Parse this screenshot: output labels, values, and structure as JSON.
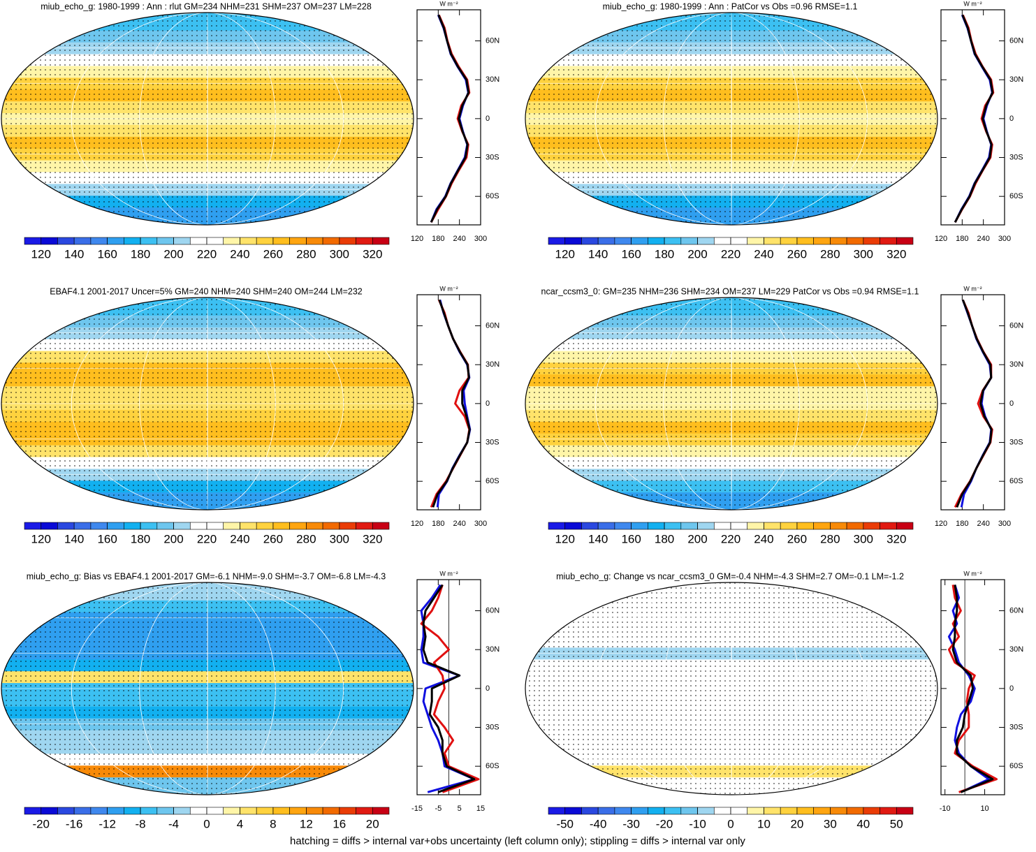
{
  "palette": [
    "#1a1ae6",
    "#0a0ad6",
    "#2a48e0",
    "#3a6ee8",
    "#3f88ee",
    "#2f9ff0",
    "#12b0f0",
    "#3cc0f2",
    "#6ec6ee",
    "#9fd6f0",
    "#ffffff",
    "#ffffff",
    "#fff5a8",
    "#ffe36a",
    "#ffd23e",
    "#ffbe1e",
    "#ffa510",
    "#f88a08",
    "#f26a00",
    "#ea3c06",
    "#e11a12",
    "#c80014"
  ],
  "footer": "hatching = diffs > internal var+obs uncertainty (left column only); stippling = diffs > internal var only",
  "chart_data": [
    {
      "type": "map-profile",
      "title": "miub_echo_g: 1980-1999 : Ann : rlut GM=234 NHM=231 SHM=237 OM=237 LM=228",
      "colorbar_lim": [
        110,
        330
      ],
      "colorbar_ticks": [
        120,
        140,
        160,
        180,
        200,
        220,
        240,
        260,
        280,
        300,
        320
      ],
      "units": "W m⁻²",
      "xlim": [
        120,
        300
      ],
      "xticks": [
        120,
        180,
        240,
        300
      ],
      "ylim": [
        -82,
        84
      ],
      "yticks": [
        {
          "value": 60,
          "label": "60N"
        },
        {
          "value": 30,
          "label": "30N"
        },
        0,
        {
          "value": -30,
          "label": "30S"
        },
        {
          "value": -60,
          "label": "60S"
        }
      ],
      "y": [
        -80,
        -70,
        -60,
        -50,
        -40,
        -30,
        -20,
        -10,
        0,
        10,
        20,
        30,
        40,
        50,
        60,
        70,
        80
      ],
      "series": [
        {
          "color": "#1010e0",
          "values": [
            160,
            175,
            200,
            215,
            235,
            255,
            262,
            250,
            240,
            250,
            265,
            258,
            235,
            215,
            205,
            195,
            180
          ]
        },
        {
          "color": "#e01010",
          "values": [
            160,
            180,
            202,
            218,
            238,
            260,
            265,
            248,
            235,
            245,
            268,
            262,
            238,
            218,
            206,
            198,
            182
          ]
        },
        {
          "color": "#000000",
          "values": [
            160,
            177,
            201,
            216,
            236,
            257,
            263,
            249,
            238,
            248,
            266,
            260,
            236,
            216,
            205,
            196,
            181
          ]
        }
      ]
    },
    {
      "type": "map-profile",
      "title": "miub_echo_g: 1980-1999 : Ann : PatCor vs Obs =0.96 RMSE=1.1",
      "colorbar_lim": [
        110,
        330
      ],
      "colorbar_ticks": [
        120,
        140,
        160,
        180,
        200,
        220,
        240,
        260,
        280,
        300,
        320
      ],
      "units": "W m⁻²",
      "xlim": [
        120,
        300
      ],
      "xticks": [
        120,
        180,
        240,
        300
      ],
      "ylim": [
        -82,
        84
      ],
      "yticks": [
        {
          "value": 60,
          "label": "60N"
        },
        {
          "value": 30,
          "label": "30N"
        },
        0,
        {
          "value": -30,
          "label": "30S"
        },
        {
          "value": -60,
          "label": "60S"
        }
      ],
      "y": [
        -80,
        -70,
        -60,
        -50,
        -40,
        -30,
        -20,
        -10,
        0,
        10,
        20,
        30,
        40,
        50,
        60,
        70,
        80
      ],
      "series": [
        {
          "color": "#1010e0",
          "values": [
            160,
            178,
            200,
            215,
            236,
            256,
            262,
            250,
            240,
            250,
            265,
            258,
            236,
            215,
            205,
            195,
            180
          ]
        },
        {
          "color": "#e01010",
          "values": [
            160,
            180,
            202,
            218,
            238,
            260,
            265,
            248,
            235,
            245,
            268,
            262,
            238,
            218,
            206,
            198,
            182
          ]
        },
        {
          "color": "#000000",
          "values": [
            160,
            179,
            201,
            216,
            237,
            258,
            263,
            249,
            238,
            248,
            266,
            260,
            237,
            216,
            205,
            196,
            181
          ]
        }
      ]
    },
    {
      "type": "map-profile",
      "title": "EBAF4.1 2001-2017 Uncer=5% GM=240 NHM=240 SHM=240 OM=244 LM=232",
      "colorbar_lim": [
        110,
        330
      ],
      "colorbar_ticks": [
        120,
        140,
        160,
        180,
        200,
        220,
        240,
        260,
        280,
        300,
        320
      ],
      "units": "W m⁻²",
      "xlim": [
        120,
        300
      ],
      "xticks": [
        120,
        180,
        240,
        300
      ],
      "ylim": [
        -82,
        84
      ],
      "yticks": [
        {
          "value": 60,
          "label": "60N"
        },
        {
          "value": 30,
          "label": "30N"
        },
        0,
        {
          "value": -30,
          "label": "30S"
        },
        {
          "value": -60,
          "label": "60S"
        }
      ],
      "y": [
        -80,
        -70,
        -60,
        -50,
        -40,
        -30,
        -20,
        -10,
        0,
        10,
        20,
        30,
        40,
        50,
        60,
        70,
        80
      ],
      "series": [
        {
          "color": "#1010e0",
          "values": [
            178,
            182,
            205,
            220,
            240,
            262,
            270,
            262,
            255,
            252,
            268,
            262,
            240,
            222,
            208,
            195,
            185
          ]
        },
        {
          "color": "#e01010",
          "values": [
            160,
            175,
            202,
            222,
            242,
            262,
            268,
            255,
            228,
            240,
            266,
            264,
            242,
            222,
            208,
            198,
            182
          ]
        },
        {
          "color": "#000000",
          "values": [
            165,
            178,
            204,
            221,
            241,
            262,
            269,
            260,
            248,
            248,
            267,
            263,
            241,
            222,
            208,
            196,
            183
          ]
        }
      ]
    },
    {
      "type": "map-profile",
      "title": "ncar_ccsm3_0: GM=235 NHM=236 SHM=234 OM=237 LM=229 PatCor vs Obs =0.94 RMSE=1.1",
      "colorbar_lim": [
        110,
        330
      ],
      "colorbar_ticks": [
        120,
        140,
        160,
        180,
        200,
        220,
        240,
        260,
        280,
        300,
        320
      ],
      "units": "W m⁻²",
      "xlim": [
        120,
        300
      ],
      "xticks": [
        120,
        180,
        240,
        300
      ],
      "ylim": [
        -82,
        84
      ],
      "yticks": [
        {
          "value": 60,
          "label": "60N"
        },
        {
          "value": 30,
          "label": "30N"
        },
        0,
        {
          "value": -30,
          "label": "30S"
        },
        {
          "value": -60,
          "label": "60S"
        }
      ],
      "y": [
        -80,
        -70,
        -60,
        -50,
        -40,
        -30,
        -20,
        -10,
        0,
        10,
        20,
        30,
        40,
        50,
        60,
        70,
        80
      ],
      "series": [
        {
          "color": "#1010e0",
          "values": [
            178,
            185,
            205,
            220,
            238,
            258,
            262,
            245,
            235,
            240,
            262,
            258,
            238,
            220,
            208,
            195,
            182
          ]
        },
        {
          "color": "#e01010",
          "values": [
            160,
            178,
            202,
            220,
            240,
            260,
            265,
            240,
            225,
            238,
            262,
            262,
            240,
            222,
            208,
            198,
            182
          ]
        },
        {
          "color": "#000000",
          "values": [
            165,
            180,
            203,
            220,
            239,
            259,
            263,
            243,
            232,
            239,
            262,
            260,
            239,
            221,
            208,
            196,
            182
          ]
        }
      ]
    },
    {
      "type": "map-profile",
      "title": "miub_echo_g: Bias vs EBAF4.1 2001-2017 GM=-6.1 NHM=-9.0 SHM=-3.7 OM=-6.8 LM=-4.3",
      "colorbar_lim": [
        -22,
        22
      ],
      "colorbar_ticks": [
        -20,
        -16,
        -12,
        -8,
        -4,
        0,
        4,
        8,
        12,
        16,
        20
      ],
      "units": "W m⁻²",
      "xlim": [
        -15,
        15
      ],
      "xticks": [
        -15,
        -5,
        5,
        15
      ],
      "ylim": [
        -82,
        84
      ],
      "yticks": [
        {
          "value": 60,
          "label": "60N"
        },
        {
          "value": 30,
          "label": "30N"
        },
        0,
        {
          "value": -30,
          "label": "30S"
        },
        {
          "value": -60,
          "label": "60S"
        }
      ],
      "y": [
        -80,
        -70,
        -60,
        -50,
        -40,
        -30,
        -20,
        -10,
        0,
        10,
        20,
        30,
        40,
        50,
        60,
        70,
        80
      ],
      "series": [
        {
          "color": "#1010e0",
          "values": [
            -10,
            12,
            -2,
            -3,
            -5,
            -8,
            -10,
            -12,
            -11,
            5,
            -12,
            -13,
            -12,
            -12,
            -13,
            -8,
            -4
          ]
        },
        {
          "color": "#e01010",
          "values": [
            -3,
            14,
            0,
            -2,
            2,
            -2,
            -7,
            -5,
            -2,
            -3,
            -7,
            0,
            -5,
            -13,
            -8,
            -5,
            -3
          ]
        },
        {
          "color": "#000000",
          "values": [
            -5,
            12,
            -1,
            -3,
            -3,
            -5,
            -9,
            -8,
            -8,
            5,
            -10,
            -12,
            -11,
            -12,
            -11,
            -7,
            -3
          ]
        }
      ]
    },
    {
      "type": "map-profile",
      "title": "miub_echo_g: Change vs ncar_ccsm3_0 GM=-0.4 NHM=-4.3 SHM=2.7 OM=-0.1 LM=-1.2",
      "colorbar_lim": [
        -55,
        55
      ],
      "colorbar_ticks": [
        -50,
        -40,
        -30,
        -20,
        -10,
        0,
        10,
        20,
        30,
        40,
        50
      ],
      "units": "W m⁻²",
      "xlim": [
        -12,
        20
      ],
      "xticks": [
        -10,
        10
      ],
      "ylim": [
        -82,
        84
      ],
      "yticks": [
        {
          "value": 60,
          "label": "60N"
        },
        {
          "value": 30,
          "label": "30N"
        },
        0,
        {
          "value": -30,
          "label": "30S"
        },
        {
          "value": -60,
          "label": "60S"
        }
      ],
      "y": [
        -80,
        -70,
        -60,
        -50,
        -40,
        -30,
        -20,
        -10,
        0,
        10,
        20,
        30,
        40,
        50,
        60,
        70,
        80
      ],
      "series": [
        {
          "color": "#1010e0",
          "values": [
            -2,
            12,
            3,
            -3,
            -5,
            -4,
            -2,
            3,
            5,
            2,
            -3,
            -5,
            -8,
            -4,
            -6,
            -3,
            -5
          ]
        },
        {
          "color": "#e01010",
          "values": [
            -3,
            16,
            4,
            -5,
            -3,
            2,
            2,
            1,
            2,
            5,
            -5,
            -8,
            -3,
            -6,
            -2,
            -5,
            -6
          ]
        },
        {
          "color": "#000000",
          "values": [
            -2,
            14,
            3,
            -4,
            -4,
            -1,
            0,
            2,
            4,
            3,
            -4,
            -6,
            -5,
            -5,
            -4,
            -4,
            -5
          ]
        }
      ]
    }
  ]
}
